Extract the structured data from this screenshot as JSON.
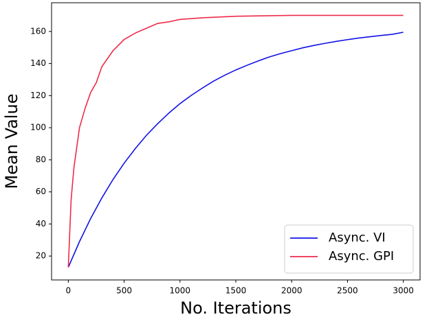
{
  "chart_data": {
    "type": "line",
    "xlabel": "No. Iterations",
    "ylabel": "Mean Value",
    "xlim": [
      -150,
      3150
    ],
    "ylim": [
      5.1,
      177.9
    ],
    "xticks": [
      0,
      500,
      1000,
      1500,
      2000,
      2500,
      3000
    ],
    "yticks": [
      20,
      40,
      60,
      80,
      100,
      120,
      140,
      160
    ],
    "legend": "lower right",
    "series": [
      {
        "name": "Async. VI",
        "color": "#1010e6",
        "x": [
          0,
          100,
          200,
          300,
          400,
          500,
          600,
          700,
          800,
          900,
          1000,
          1100,
          1200,
          1300,
          1400,
          1500,
          1600,
          1700,
          1800,
          1900,
          2000,
          2100,
          2200,
          2300,
          2400,
          2500,
          2600,
          2700,
          2800,
          2900,
          3000
        ],
        "values": [
          13,
          29,
          43.4,
          56.2,
          67.7,
          77.9,
          87,
          95.3,
          102.5,
          109.1,
          115,
          120.1,
          124.7,
          129,
          132.7,
          136,
          138.9,
          141.6,
          144.1,
          146.2,
          148,
          149.8,
          151.3,
          152.6,
          153.8,
          154.9,
          155.9,
          156.7,
          157.5,
          158.2,
          159.5
        ]
      },
      {
        "name": "Async. GPI",
        "color": "#ee2a4a",
        "x": [
          0,
          25,
          50,
          100,
          150,
          200,
          250,
          300,
          400,
          500,
          600,
          700,
          800,
          900,
          1000,
          1200,
          1500,
          2000,
          2500,
          3000
        ],
        "values": [
          13,
          55,
          75,
          100,
          112,
          122,
          128,
          138,
          148,
          155,
          159,
          162,
          165,
          166,
          167.5,
          168.5,
          169.5,
          170,
          170,
          170
        ]
      }
    ]
  }
}
